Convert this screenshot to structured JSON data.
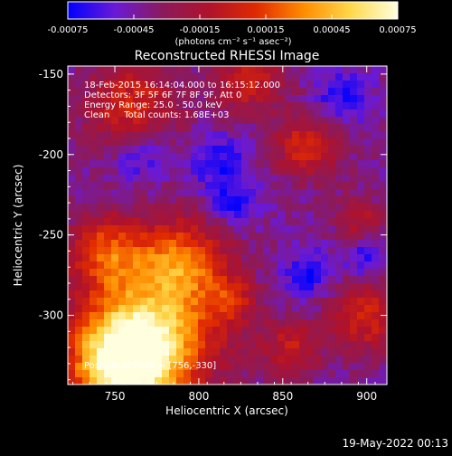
{
  "colorbar": {
    "ticks": [
      "-0.00075",
      "-0.00045",
      "-0.00015",
      "0.00015",
      "0.00045",
      "0.00075"
    ],
    "unit_label": "(photons cm⁻² s⁻¹ asec⁻²)"
  },
  "chart_data": {
    "type": "heatmap",
    "title": "Reconstructed RHESSI Image",
    "xlabel": "Heliocentric X (arcsec)",
    "ylabel": "Heliocentric Y (arcsec)",
    "x_ticks": [
      750,
      800,
      850,
      900
    ],
    "y_ticks": [
      -150,
      -200,
      -250,
      -300
    ],
    "xlim": [
      722,
      912
    ],
    "ylim": [
      -343,
      -145
    ],
    "value_range": [
      -0.00075,
      0.00075
    ],
    "colormap": [
      "#0000ff",
      "#6a1ad6",
      "#8b1a5c",
      "#b0122a",
      "#e02a00",
      "#ff8c00",
      "#ffd84a",
      "#ffffe0"
    ],
    "peak_position": [
      756,
      -330
    ],
    "annotations": {
      "time_range": "18-Feb-2015 16:14:04.000 to 16:15:12.000",
      "detectors": "Detectors: 3F 5F 6F 7F 8F 9F, Att 0",
      "energy_range": "Energy Range: 25.0 - 50.0 keV",
      "method_counts": "Clean     Total counts: 1.68E+03",
      "peak": "Position of Peak = [756,-330]"
    }
  },
  "footer": {
    "timestamp": "19-May-2022 00:13"
  }
}
